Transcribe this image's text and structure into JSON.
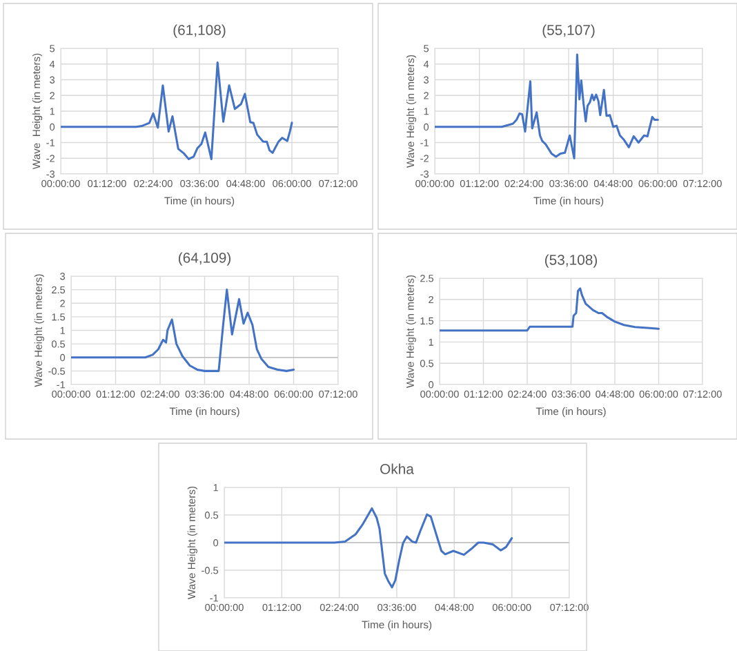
{
  "chart_data": [
    {
      "type": "line",
      "title": "(61,108)",
      "xlabel": "Time (in hours)",
      "ylabel": "Wave  Height (in meters)",
      "xlim": [
        0,
        7.2
      ],
      "xticks": [
        {
          "value": 0,
          "label": "00:00:00"
        },
        {
          "value": 1.2,
          "label": "01:12:00"
        },
        {
          "value": 2.4,
          "label": "02:24:00"
        },
        {
          "value": 3.6,
          "label": "03:36:00"
        },
        {
          "value": 4.8,
          "label": "04:48:00"
        },
        {
          "value": 6.0,
          "label": "06:00:00"
        },
        {
          "value": 7.2,
          "label": "07:12:00"
        }
      ],
      "ylim": [
        -3,
        5
      ],
      "yticks": [
        -3,
        -2,
        -1,
        0,
        1,
        2,
        3,
        4,
        5
      ],
      "grid": true,
      "series": [
        {
          "color": "#4472c4",
          "x": [
            0,
            1.96,
            2.1,
            2.3,
            2.4,
            2.52,
            2.65,
            2.8,
            2.9,
            3.05,
            3.2,
            3.32,
            3.45,
            3.55,
            3.65,
            3.75,
            3.91,
            4.07,
            4.22,
            4.37,
            4.52,
            4.68,
            4.78,
            4.92,
            5.0,
            5.1,
            5.25,
            5.35,
            5.42,
            5.5,
            5.65,
            5.75,
            5.88,
            5.95,
            6.0
          ],
          "values": [
            0,
            0,
            0.05,
            0.25,
            0.85,
            -0.05,
            2.64,
            -0.3,
            0.67,
            -1.4,
            -1.7,
            -2.05,
            -1.9,
            -1.35,
            -1.1,
            -0.36,
            -2.05,
            4.1,
            0.33,
            2.64,
            1.14,
            1.45,
            2.1,
            0.3,
            0.25,
            -0.5,
            -0.93,
            -0.95,
            -1.5,
            -1.65,
            -0.95,
            -0.7,
            -0.9,
            -0.28,
            0.26
          ]
        }
      ]
    },
    {
      "type": "line",
      "title": "(55,107)",
      "xlabel": "Time (in hours)",
      "ylabel": "Wave Height (in meters)",
      "xlim": [
        0,
        7.2
      ],
      "xticks": [
        {
          "value": 0,
          "label": "00:00:00"
        },
        {
          "value": 1.2,
          "label": "01:12:00"
        },
        {
          "value": 2.4,
          "label": "02:24:00"
        },
        {
          "value": 3.6,
          "label": "03:36:00"
        },
        {
          "value": 4.8,
          "label": "04:48:00"
        },
        {
          "value": 6.0,
          "label": "06:00:00"
        },
        {
          "value": 7.2,
          "label": "07:12:00"
        }
      ],
      "ylim": [
        -3,
        5
      ],
      "yticks": [
        -3,
        -2,
        -1,
        0,
        1,
        2,
        3,
        4,
        5
      ],
      "grid": true,
      "series": [
        {
          "color": "#4472c4",
          "x": [
            0,
            1.8,
            2.1,
            2.2,
            2.28,
            2.35,
            2.43,
            2.57,
            2.62,
            2.74,
            2.83,
            2.89,
            2.98,
            3.14,
            3.26,
            3.38,
            3.5,
            3.63,
            3.75,
            3.83,
            3.89,
            3.94,
            4.0,
            4.06,
            4.11,
            4.17,
            4.23,
            4.28,
            4.34,
            4.4,
            4.45,
            4.55,
            4.62,
            4.71,
            4.8,
            4.89,
            4.98,
            5.08,
            5.22,
            5.35,
            5.48,
            5.63,
            5.72,
            5.85,
            5.91,
            6.0
          ],
          "values": [
            0,
            0,
            0.2,
            0.45,
            0.85,
            0.8,
            -0.3,
            2.9,
            -0.1,
            0.92,
            -0.55,
            -0.9,
            -1.1,
            -1.7,
            -1.9,
            -1.7,
            -1.65,
            -0.55,
            -2.0,
            4.6,
            1.75,
            2.95,
            1.5,
            0.35,
            1.35,
            1.55,
            2.05,
            1.7,
            2.05,
            1.65,
            0.75,
            2.35,
            0.7,
            0.75,
            0.0,
            0.07,
            -0.55,
            -0.8,
            -1.3,
            -0.6,
            -1.0,
            -0.55,
            -0.6,
            0.63,
            0.45,
            0.45
          ]
        }
      ]
    },
    {
      "type": "line",
      "title": "(64,109)",
      "xlabel": "Time (in hours)",
      "ylabel": "Wave Height (in meters)",
      "xlim": [
        0,
        7.2
      ],
      "xticks": [
        {
          "value": 0,
          "label": "00:00:00"
        },
        {
          "value": 1.2,
          "label": "01:12:00"
        },
        {
          "value": 2.4,
          "label": "02:24:00"
        },
        {
          "value": 3.6,
          "label": "03:36:00"
        },
        {
          "value": 4.8,
          "label": "04:48:00"
        },
        {
          "value": 6.0,
          "label": "06:00:00"
        },
        {
          "value": 7.2,
          "label": "07:12:00"
        }
      ],
      "ylim": [
        -1,
        3
      ],
      "yticks": [
        -1,
        -0.5,
        0,
        0.5,
        1,
        1.5,
        2,
        2.5,
        3
      ],
      "grid": true,
      "series": [
        {
          "color": "#4472c4",
          "x": [
            0,
            2.0,
            2.2,
            2.35,
            2.48,
            2.56,
            2.6,
            2.72,
            2.84,
            3.0,
            3.2,
            3.4,
            3.6,
            3.98,
            4.1,
            4.2,
            4.34,
            4.53,
            4.65,
            4.76,
            4.89,
            5.01,
            5.13,
            5.32,
            5.57,
            5.81,
            6.0
          ],
          "values": [
            0,
            0,
            0.1,
            0.3,
            0.65,
            0.55,
            1.0,
            1.4,
            0.5,
            0.05,
            -0.3,
            -0.45,
            -0.5,
            -0.5,
            1.2,
            2.5,
            0.85,
            2.15,
            1.25,
            1.65,
            1.2,
            0.3,
            -0.05,
            -0.35,
            -0.45,
            -0.5,
            -0.45
          ]
        }
      ]
    },
    {
      "type": "line",
      "title": "(53,108)",
      "xlabel": "Time (in hours)",
      "ylabel": "Wave Height (in meters)",
      "xlim": [
        0,
        7.2
      ],
      "xticks": [
        {
          "value": 0,
          "label": "00:00:00"
        },
        {
          "value": 1.2,
          "label": "01:12:00"
        },
        {
          "value": 2.4,
          "label": "02:24:00"
        },
        {
          "value": 3.6,
          "label": "03:36:00"
        },
        {
          "value": 4.8,
          "label": "04:48:00"
        },
        {
          "value": 6.0,
          "label": "06:00:00"
        },
        {
          "value": 7.2,
          "label": "07:12:00"
        }
      ],
      "ylim": [
        0,
        2.5
      ],
      "yticks": [
        0,
        0.5,
        1,
        1.5,
        2,
        2.5
      ],
      "grid": true,
      "series": [
        {
          "color": "#4472c4",
          "x": [
            0,
            2.4,
            2.47,
            3.64,
            3.67,
            3.74,
            3.79,
            3.85,
            3.9,
            4.0,
            4.2,
            4.35,
            4.45,
            4.6,
            4.8,
            5.05,
            5.35,
            5.7,
            6.0
          ],
          "values": [
            1.27,
            1.27,
            1.36,
            1.36,
            1.62,
            1.68,
            2.2,
            2.26,
            2.1,
            1.9,
            1.75,
            1.68,
            1.68,
            1.58,
            1.48,
            1.4,
            1.35,
            1.33,
            1.31
          ]
        }
      ]
    },
    {
      "type": "line",
      "title": "Okha",
      "xlabel": "Time (in hours)",
      "ylabel": "Wave Height (in meters)",
      "xlim": [
        0,
        7.2
      ],
      "xticks": [
        {
          "value": 0,
          "label": "00:00:00"
        },
        {
          "value": 1.2,
          "label": "01:12:00"
        },
        {
          "value": 2.4,
          "label": "02:24:00"
        },
        {
          "value": 3.6,
          "label": "03:36:00"
        },
        {
          "value": 4.8,
          "label": "04:48:00"
        },
        {
          "value": 6.0,
          "label": "06:00:00"
        },
        {
          "value": 7.2,
          "label": "07:12:00"
        }
      ],
      "ylim": [
        -1,
        1
      ],
      "yticks": [
        -1,
        -0.5,
        0,
        0.5,
        1
      ],
      "grid": true,
      "series": [
        {
          "color": "#4472c4",
          "x": [
            0,
            2.3,
            2.52,
            2.74,
            2.88,
            3.08,
            3.18,
            3.24,
            3.35,
            3.43,
            3.5,
            3.57,
            3.65,
            3.73,
            3.81,
            3.92,
            4.0,
            4.09,
            4.23,
            4.31,
            4.42,
            4.53,
            4.61,
            4.78,
            5.0,
            5.16,
            5.3,
            5.41,
            5.6,
            5.77,
            5.88,
            6.0
          ],
          "values": [
            0,
            0,
            0.02,
            0.15,
            0.32,
            0.62,
            0.45,
            0.25,
            -0.56,
            -0.71,
            -0.81,
            -0.68,
            -0.32,
            -0.01,
            0.11,
            0.02,
            0.0,
            0.21,
            0.51,
            0.47,
            0.16,
            -0.15,
            -0.21,
            -0.15,
            -0.22,
            -0.11,
            0.0,
            0.0,
            -0.03,
            -0.14,
            -0.08,
            0.08
          ]
        }
      ]
    }
  ]
}
